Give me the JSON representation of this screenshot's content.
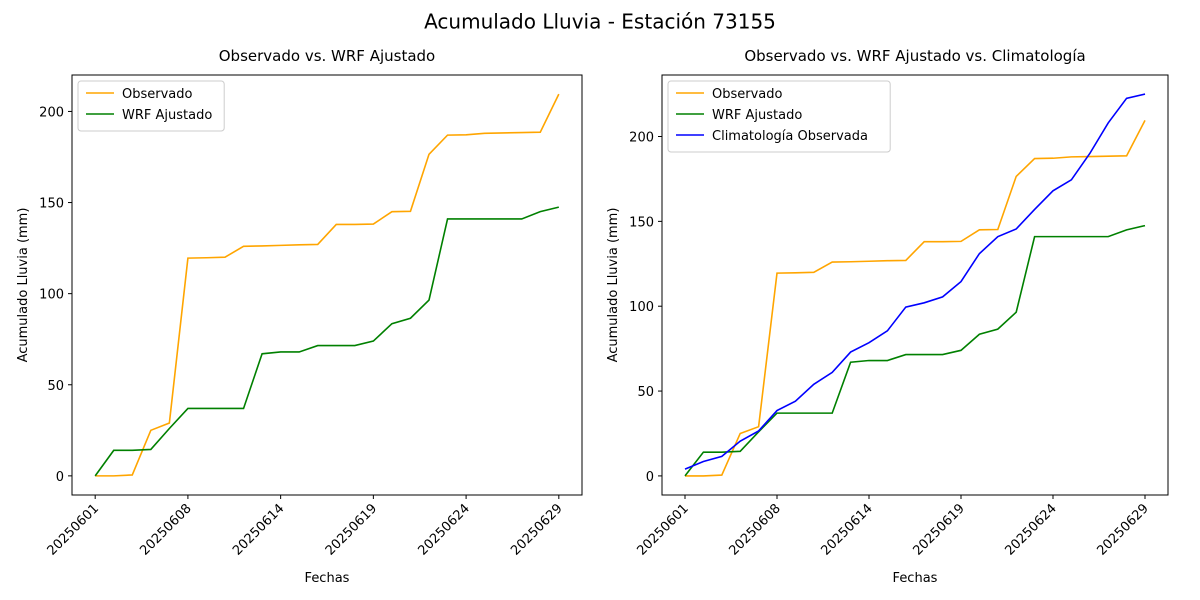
{
  "title": "Acumulado Lluvia - Estación 73155",
  "chart_data": [
    {
      "type": "line",
      "title": "Observado vs. WRF Ajustado",
      "xlabel": "Fechas",
      "ylabel": "Acumulado Lluvia (mm)",
      "categories": [
        "20250601",
        null,
        null,
        null,
        null,
        "20250608",
        null,
        null,
        null,
        null,
        "20250614",
        null,
        null,
        null,
        null,
        "20250619",
        null,
        null,
        null,
        null,
        "20250624",
        null,
        null,
        null,
        null,
        "20250629"
      ],
      "ylim": [
        -10.5,
        220
      ],
      "yticks": [
        0,
        50,
        100,
        150,
        200
      ],
      "legend": "upper left",
      "series": [
        {
          "name": "Observado",
          "color": "orange",
          "values": [
            0,
            0,
            0.5,
            25,
            29,
            119.5,
            119.7,
            120,
            126,
            126.2,
            126.5,
            126.8,
            127,
            138,
            138,
            138.2,
            145,
            145.2,
            176.5,
            187,
            187.2,
            188,
            188.2,
            188.4,
            188.6,
            209.5
          ]
        },
        {
          "name": "WRF Ajustado",
          "color": "green",
          "values": [
            0,
            14,
            14,
            14.5,
            26,
            37,
            37,
            37,
            37,
            67,
            68,
            68,
            71.5,
            71.5,
            71.5,
            74,
            83.5,
            86.5,
            96.5,
            141,
            141,
            141,
            141,
            141,
            145,
            147.5
          ]
        }
      ]
    },
    {
      "type": "line",
      "title": "Observado vs. WRF Ajustado vs. Climatología",
      "xlabel": "Fechas",
      "ylabel": "Acumulado Lluvia (mm)",
      "categories": [
        "20250601",
        null,
        null,
        null,
        null,
        "20250608",
        null,
        null,
        null,
        null,
        "20250614",
        null,
        null,
        null,
        null,
        "20250619",
        null,
        null,
        null,
        null,
        "20250624",
        null,
        null,
        null,
        null,
        "20250629"
      ],
      "ylim": [
        -11.25,
        236.25
      ],
      "yticks": [
        0,
        50,
        100,
        150,
        200
      ],
      "legend": "upper left",
      "series": [
        {
          "name": "Observado",
          "color": "orange",
          "values": [
            0,
            0,
            0.5,
            25,
            29,
            119.5,
            119.7,
            120,
            126,
            126.2,
            126.5,
            126.8,
            127,
            138,
            138,
            138.2,
            145,
            145.2,
            176.5,
            187,
            187.2,
            188,
            188.2,
            188.4,
            188.6,
            209.5
          ]
        },
        {
          "name": "WRF Ajustado",
          "color": "green",
          "values": [
            0,
            14,
            14,
            14.5,
            26,
            37,
            37,
            37,
            37,
            67,
            68,
            68,
            71.5,
            71.5,
            71.5,
            74,
            83.5,
            86.5,
            96.5,
            141,
            141,
            141,
            141,
            141,
            145,
            147.5
          ]
        },
        {
          "name": "Climatología Observada",
          "color": "blue",
          "values": [
            4,
            8.5,
            11.5,
            20.5,
            26.5,
            38.5,
            44,
            54,
            61,
            73,
            78.5,
            85.5,
            99.5,
            102,
            105.5,
            114.5,
            131,
            141,
            145.5,
            157,
            168,
            174.5,
            190,
            208,
            222.5,
            225
          ]
        }
      ]
    }
  ]
}
